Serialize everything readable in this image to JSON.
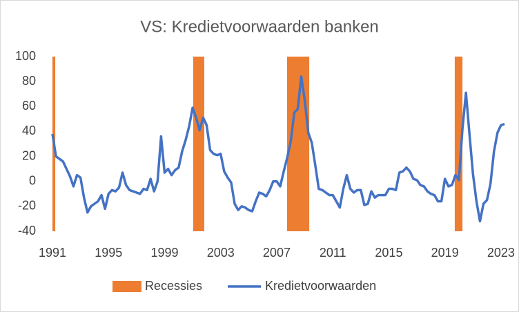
{
  "chart_data": {
    "type": "line",
    "title": "VS: Kredietvoorwaarden banken",
    "xlim": [
      1991,
      2023.3
    ],
    "ylim": [
      -40,
      100
    ],
    "xticks": [
      1991,
      1995,
      1999,
      2003,
      2007,
      2011,
      2015,
      2019,
      2023
    ],
    "yticks": [
      -40,
      -20,
      0,
      20,
      40,
      60,
      80,
      100
    ],
    "grid": false,
    "legend": "bottom",
    "recessions": {
      "name": "Recessies",
      "color": "#ed7d31",
      "ranges": [
        [
          1991,
          1991.2
        ],
        [
          2001.04,
          2001.83
        ],
        [
          2007.74,
          2009.32
        ],
        [
          2019.7,
          2020.25
        ]
      ]
    },
    "series": [
      {
        "name": "Kredietvoorwaarden",
        "color": "#4472c4",
        "x": [
          1991,
          1991.25,
          1991.5,
          1991.75,
          1992,
          1992.25,
          1992.5,
          1992.75,
          1993,
          1993.25,
          1993.5,
          1993.75,
          1994,
          1994.25,
          1994.5,
          1994.75,
          1995,
          1995.25,
          1995.5,
          1995.75,
          1996,
          1996.25,
          1996.5,
          1996.75,
          1997,
          1997.25,
          1997.5,
          1997.75,
          1998,
          1998.25,
          1998.5,
          1998.75,
          1999,
          1999.25,
          1999.5,
          1999.75,
          2000,
          2000.25,
          2000.5,
          2000.75,
          2001,
          2001.25,
          2001.5,
          2001.75,
          2002,
          2002.25,
          2002.5,
          2002.75,
          2003,
          2003.25,
          2003.5,
          2003.75,
          2004,
          2004.25,
          2004.5,
          2004.75,
          2005,
          2005.25,
          2005.5,
          2005.75,
          2006,
          2006.25,
          2006.5,
          2006.75,
          2007,
          2007.25,
          2007.5,
          2007.75,
          2008,
          2008.25,
          2008.5,
          2008.75,
          2009,
          2009.25,
          2009.5,
          2009.75,
          2010,
          2010.25,
          2010.5,
          2010.75,
          2011,
          2011.25,
          2011.5,
          2011.75,
          2012,
          2012.25,
          2012.5,
          2012.75,
          2013,
          2013.25,
          2013.5,
          2013.75,
          2014,
          2014.25,
          2014.5,
          2014.75,
          2015,
          2015.25,
          2015.5,
          2015.75,
          2016,
          2016.25,
          2016.5,
          2016.75,
          2017,
          2017.25,
          2017.5,
          2017.75,
          2018,
          2018.25,
          2018.5,
          2018.75,
          2019,
          2019.25,
          2019.5,
          2019.75,
          2020,
          2020.25,
          2020.5,
          2020.75,
          2021,
          2021.25,
          2021.5,
          2021.75,
          2022,
          2022.25,
          2022.5,
          2022.75,
          2023,
          2023.25
        ],
        "values": [
          38,
          20,
          18,
          16,
          10,
          4,
          -4,
          5,
          3,
          -13,
          -25,
          -20,
          -18,
          -16,
          -11,
          -22,
          -10,
          -7,
          -8,
          -5,
          7,
          -3,
          -7,
          -8,
          -9,
          -10,
          -6,
          -7,
          2,
          -8,
          0,
          36,
          7,
          10,
          5,
          9,
          11,
          24,
          33,
          44,
          59,
          51,
          41,
          51,
          45,
          25,
          22,
          21,
          22,
          8,
          3,
          -1,
          -18,
          -23,
          -20,
          -21,
          -23,
          -24,
          -16,
          -9,
          -10,
          -12,
          -7,
          0,
          0,
          -4,
          8,
          19,
          32,
          55,
          58,
          84,
          65,
          39,
          31,
          13,
          -6,
          -7,
          -9,
          -11,
          -11,
          -16,
          -21,
          -6,
          5,
          -6,
          -9,
          -7,
          -7,
          -19,
          -18,
          -8,
          -13,
          -11,
          -11,
          -11,
          -6,
          -6,
          -7,
          7,
          8,
          11,
          8,
          2,
          1,
          -3,
          -4,
          -8,
          -10,
          -11,
          -16,
          -16,
          2,
          -4,
          -3,
          5,
          1,
          42,
          71,
          38,
          6,
          -16,
          -32,
          -18,
          -15,
          -2,
          24,
          39,
          45,
          46
        ]
      }
    ]
  }
}
